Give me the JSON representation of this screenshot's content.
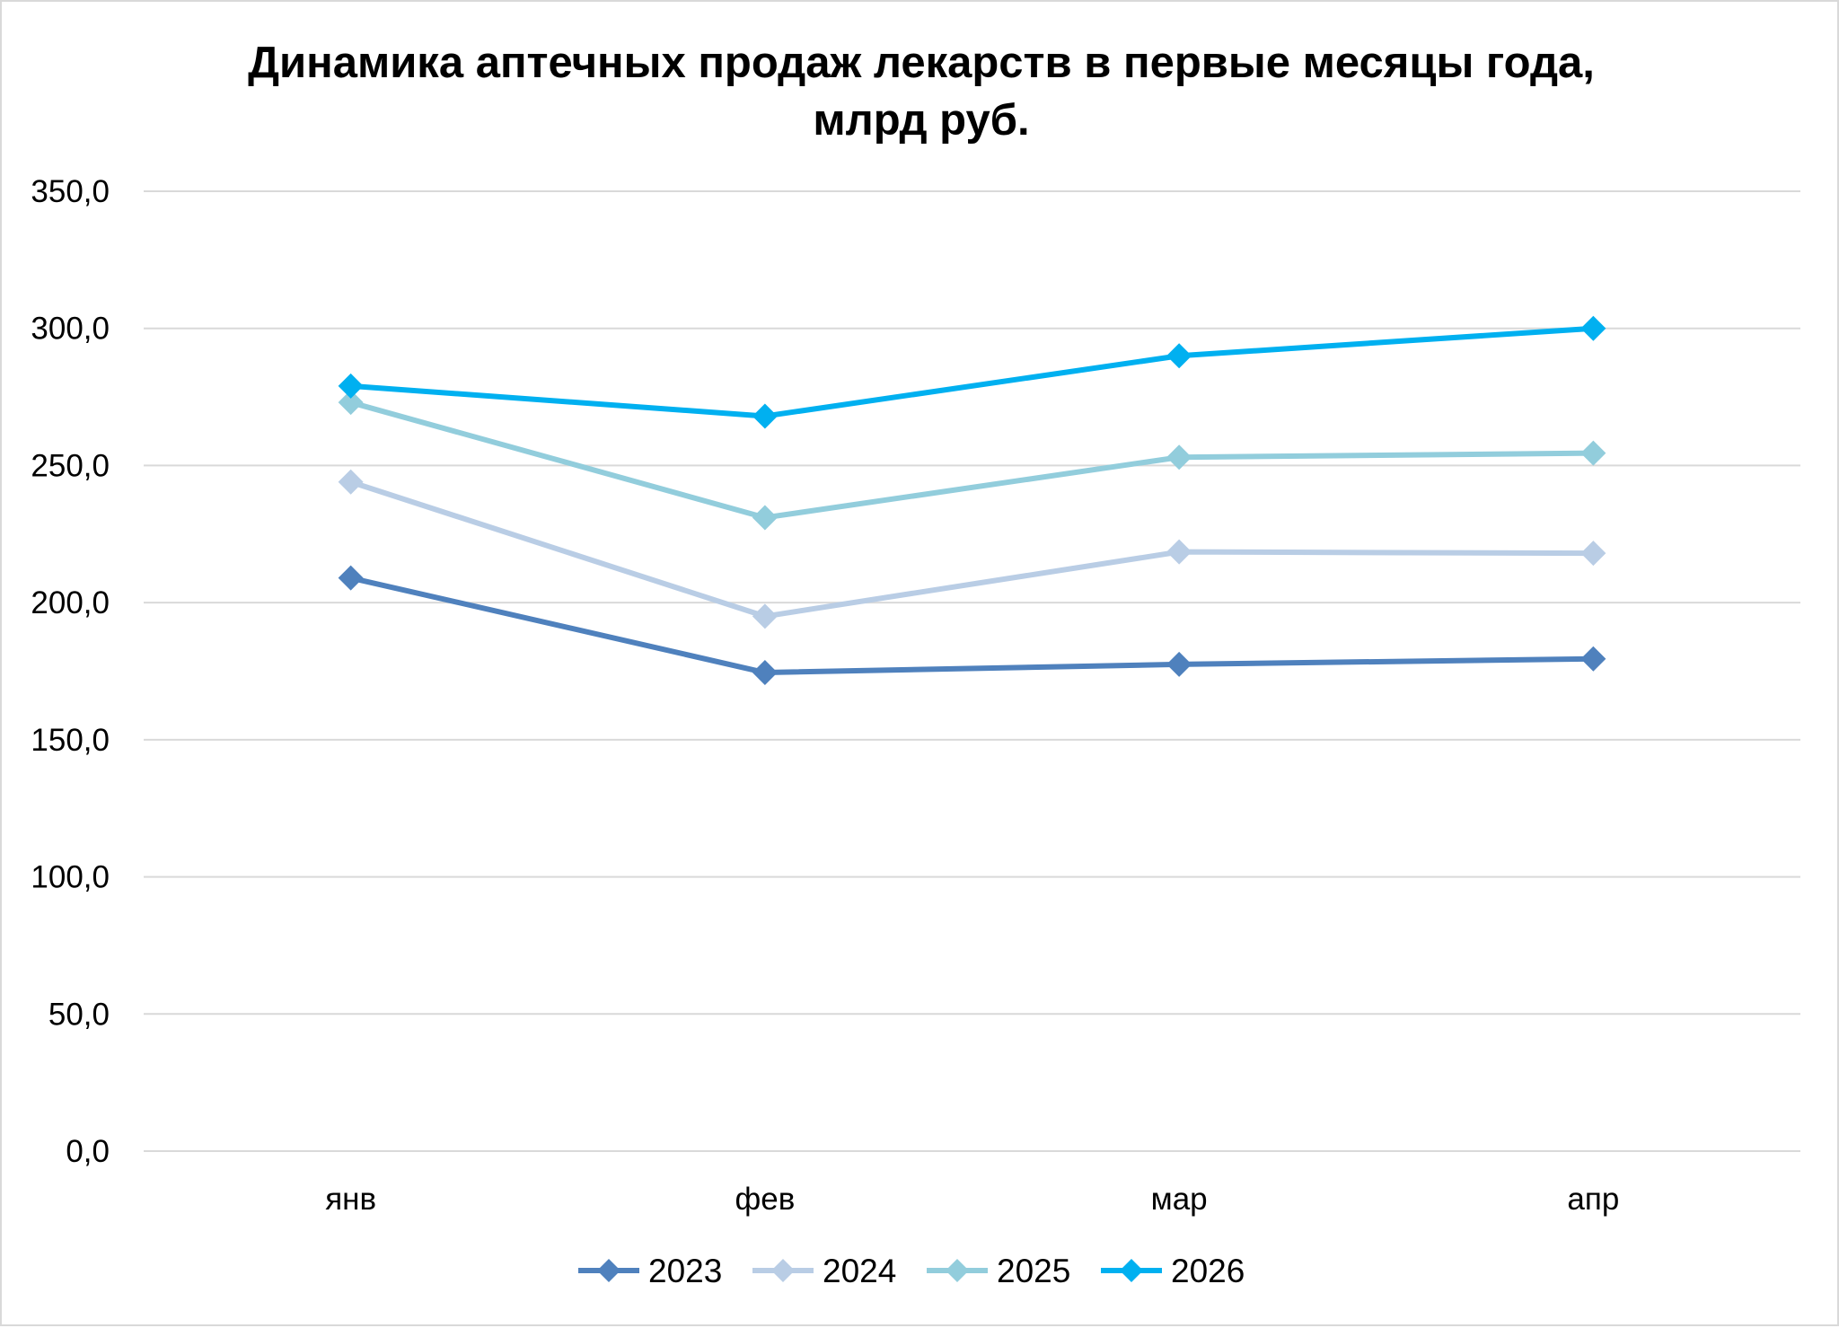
{
  "chart_data": {
    "type": "line",
    "title": "Динамика аптечных продаж лекарств в первые месяцы года, млрд руб.",
    "title_lines": [
      "Динамика аптечных продаж лекарств в первые месяцы года,",
      "млрд руб."
    ],
    "xlabel": "",
    "ylabel": "",
    "categories": [
      "янв",
      "фев",
      "мар",
      "апр"
    ],
    "ylim": [
      0,
      350
    ],
    "y_ticks": [
      0,
      50,
      100,
      150,
      200,
      250,
      300,
      350
    ],
    "y_tick_labels": [
      "0,0",
      "50,0",
      "100,0",
      "150,0",
      "200,0",
      "250,0",
      "300,0",
      "350,0"
    ],
    "grid": true,
    "legend_position": "bottom",
    "marker": "diamond",
    "series": [
      {
        "name": "2023",
        "color": "#4F81BD",
        "values": [
          209,
          174.5,
          177.5,
          179.5
        ]
      },
      {
        "name": "2024",
        "color": "#B9CDE5",
        "values": [
          244,
          195,
          218.5,
          218
        ]
      },
      {
        "name": "2025",
        "color": "#92CDDC",
        "values": [
          273,
          231,
          253,
          254.5
        ]
      },
      {
        "name": "2026",
        "color": "#00B0F0",
        "values": [
          279,
          268,
          290,
          300
        ]
      }
    ]
  }
}
